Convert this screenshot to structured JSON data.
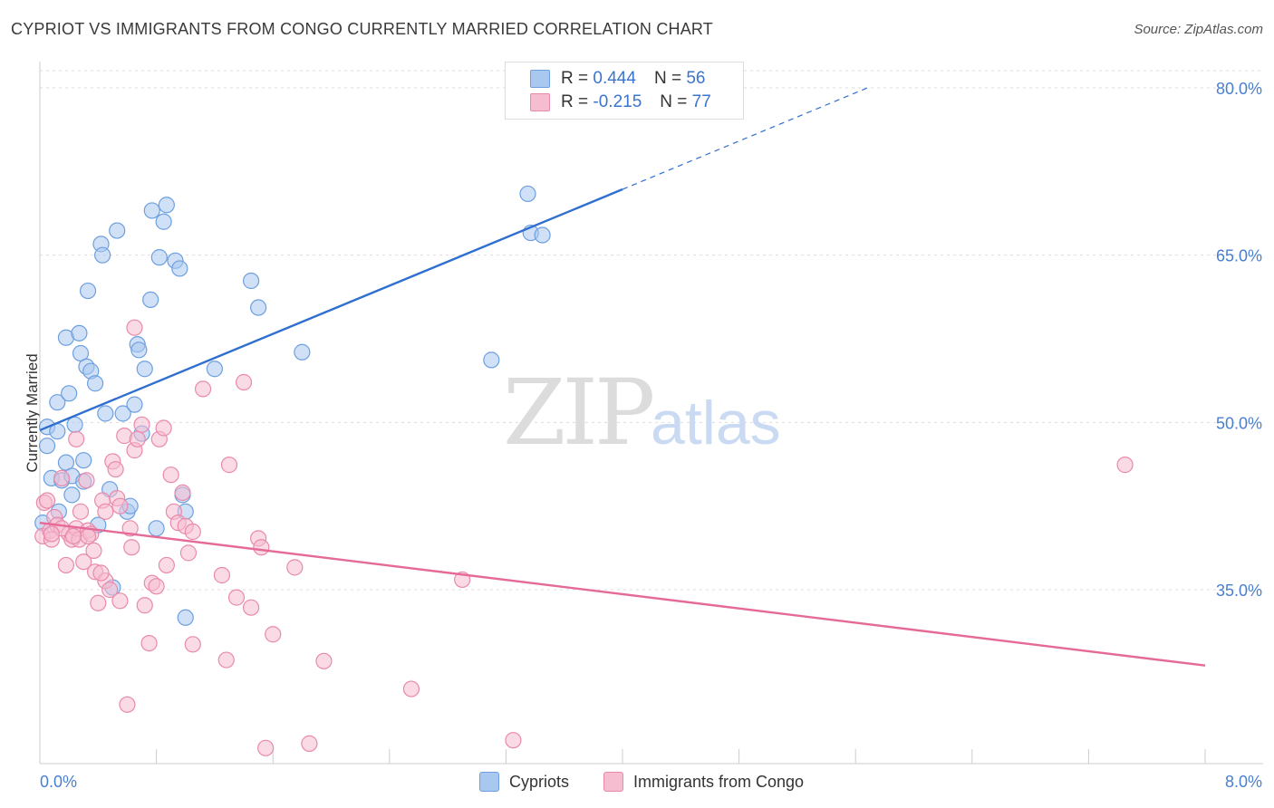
{
  "title": "CYPRIOT VS IMMIGRANTS FROM CONGO CURRENTLY MARRIED CORRELATION CHART",
  "source": "Source: ZipAtlas.com",
  "watermark": {
    "zip": "ZIP",
    "atlas": "atlas"
  },
  "colors": {
    "blue_fill": "#a9c8f0",
    "blue_edge": "#6d9fe0",
    "blue_line": "#2f6fd0",
    "pink_fill": "#f6bcd0",
    "pink_edge": "#e98aab",
    "pink_line": "#e56a97",
    "axis_text": "#4a7fd0",
    "grid": "#dddddd"
  },
  "legend": {
    "rows": [
      {
        "r_label": "R = ",
        "r_value": "0.444",
        "n_label": "N = ",
        "n_value": "56",
        "color": "#a9c8f0"
      },
      {
        "r_label": "R = ",
        "r_value": "-0.215",
        "n_label": "N = ",
        "n_value": "77",
        "color": "#f6bcd0"
      }
    ]
  },
  "bottom_legend": [
    {
      "label": "Cypriots",
      "color": "#a9c8f0"
    },
    {
      "label": "Immigrants from Congo",
      "color": "#f6bcd0"
    }
  ],
  "chart_data": {
    "type": "scatter",
    "title": "CYPRIOT VS IMMIGRANTS FROM CONGO CURRENTLY MARRIED CORRELATION CHART",
    "xlabel": "",
    "ylabel": "Currently Married",
    "xlim": [
      0,
      8.4
    ],
    "ylim": [
      21.0,
      82.0
    ],
    "x_tick_labels": [
      "0.0%",
      "8.0%"
    ],
    "y_ticks": [
      35.0,
      50.0,
      65.0,
      80.0
    ],
    "y_tick_labels": [
      "35.0%",
      "50.0%",
      "65.0%",
      "80.0%"
    ],
    "grid": true,
    "series": [
      {
        "name": "Cypriots",
        "r": 0.444,
        "n": 56,
        "trend": {
          "x0": 0.0,
          "y0": 49.3,
          "x1": 4.0,
          "y1": 70.9,
          "dash_x1": 5.7,
          "dash_y1": 80.1
        },
        "points": [
          [
            0.05,
            49.6
          ],
          [
            0.05,
            47.9
          ],
          [
            0.08,
            45.0
          ],
          [
            0.12,
            49.2
          ],
          [
            0.12,
            51.8
          ],
          [
            0.15,
            44.8
          ],
          [
            0.18,
            46.4
          ],
          [
            0.18,
            57.6
          ],
          [
            0.2,
            52.6
          ],
          [
            0.22,
            43.5
          ],
          [
            0.22,
            45.2
          ],
          [
            0.24,
            49.8
          ],
          [
            0.27,
            58.0
          ],
          [
            0.28,
            56.2
          ],
          [
            0.3,
            46.6
          ],
          [
            0.32,
            55.0
          ],
          [
            0.33,
            61.8
          ],
          [
            0.35,
            54.6
          ],
          [
            0.38,
            53.5
          ],
          [
            0.42,
            66.0
          ],
          [
            0.43,
            65.0
          ],
          [
            0.45,
            50.8
          ],
          [
            0.48,
            44.0
          ],
          [
            0.5,
            35.2
          ],
          [
            0.53,
            67.2
          ],
          [
            0.57,
            50.8
          ],
          [
            0.6,
            42.0
          ],
          [
            0.62,
            42.5
          ],
          [
            0.65,
            51.6
          ],
          [
            0.67,
            57.0
          ],
          [
            0.68,
            56.5
          ],
          [
            0.7,
            49.0
          ],
          [
            0.72,
            54.8
          ],
          [
            0.76,
            61.0
          ],
          [
            0.77,
            69.0
          ],
          [
            0.8,
            40.5
          ],
          [
            0.82,
            64.8
          ],
          [
            0.85,
            68.0
          ],
          [
            0.87,
            69.5
          ],
          [
            0.93,
            64.5
          ],
          [
            0.96,
            63.8
          ],
          [
            0.98,
            43.5
          ],
          [
            1.0,
            42.0
          ],
          [
            1.0,
            32.5
          ],
          [
            1.2,
            54.8
          ],
          [
            1.45,
            62.7
          ],
          [
            1.5,
            60.3
          ],
          [
            1.8,
            56.3
          ],
          [
            3.1,
            55.6
          ],
          [
            3.35,
            70.5
          ],
          [
            3.37,
            67.0
          ],
          [
            3.45,
            66.8
          ],
          [
            0.02,
            41.0
          ],
          [
            0.3,
            44.7
          ],
          [
            0.13,
            42.0
          ],
          [
            0.4,
            40.8
          ]
        ]
      },
      {
        "name": "Immigrants from Congo",
        "r": -0.215,
        "n": 77,
        "trend": {
          "x0": 0.0,
          "y0": 41.0,
          "x1": 8.0,
          "y1": 28.2
        },
        "points": [
          [
            0.02,
            39.8
          ],
          [
            0.03,
            42.8
          ],
          [
            0.05,
            43.0
          ],
          [
            0.07,
            40.3
          ],
          [
            0.08,
            39.5
          ],
          [
            0.1,
            41.5
          ],
          [
            0.12,
            40.8
          ],
          [
            0.15,
            45.0
          ],
          [
            0.18,
            37.2
          ],
          [
            0.2,
            40.0
          ],
          [
            0.22,
            39.5
          ],
          [
            0.25,
            48.5
          ],
          [
            0.25,
            40.5
          ],
          [
            0.27,
            39.5
          ],
          [
            0.28,
            42.0
          ],
          [
            0.3,
            37.5
          ],
          [
            0.32,
            44.8
          ],
          [
            0.33,
            40.3
          ],
          [
            0.35,
            40.0
          ],
          [
            0.37,
            38.5
          ],
          [
            0.38,
            36.6
          ],
          [
            0.4,
            33.8
          ],
          [
            0.43,
            43.0
          ],
          [
            0.45,
            42.0
          ],
          [
            0.45,
            35.8
          ],
          [
            0.48,
            35.0
          ],
          [
            0.5,
            46.5
          ],
          [
            0.52,
            45.8
          ],
          [
            0.53,
            43.2
          ],
          [
            0.55,
            34.0
          ],
          [
            0.58,
            48.8
          ],
          [
            0.6,
            24.7
          ],
          [
            0.62,
            40.5
          ],
          [
            0.63,
            38.8
          ],
          [
            0.65,
            47.5
          ],
          [
            0.67,
            48.5
          ],
          [
            0.7,
            49.8
          ],
          [
            0.72,
            33.6
          ],
          [
            0.75,
            30.2
          ],
          [
            0.77,
            35.6
          ],
          [
            0.8,
            35.3
          ],
          [
            0.82,
            48.5
          ],
          [
            0.85,
            49.5
          ],
          [
            0.87,
            37.2
          ],
          [
            0.9,
            45.3
          ],
          [
            0.92,
            42.0
          ],
          [
            0.95,
            41.0
          ],
          [
            0.98,
            43.7
          ],
          [
            1.0,
            40.7
          ],
          [
            1.02,
            38.3
          ],
          [
            1.05,
            40.2
          ],
          [
            1.05,
            30.1
          ],
          [
            1.12,
            53.0
          ],
          [
            1.25,
            36.3
          ],
          [
            1.28,
            28.7
          ],
          [
            1.3,
            46.2
          ],
          [
            1.35,
            34.3
          ],
          [
            1.4,
            53.6
          ],
          [
            1.45,
            33.4
          ],
          [
            1.5,
            39.6
          ],
          [
            1.52,
            38.8
          ],
          [
            1.55,
            20.8
          ],
          [
            1.6,
            31.0
          ],
          [
            1.75,
            37.0
          ],
          [
            1.85,
            21.2
          ],
          [
            1.95,
            28.6
          ],
          [
            2.55,
            26.1
          ],
          [
            2.9,
            35.9
          ],
          [
            3.25,
            21.5
          ],
          [
            7.45,
            46.2
          ],
          [
            0.65,
            58.5
          ],
          [
            0.42,
            36.5
          ],
          [
            0.15,
            40.5
          ],
          [
            0.55,
            42.5
          ],
          [
            0.33,
            39.8
          ],
          [
            0.08,
            40.0
          ],
          [
            0.23,
            39.8
          ]
        ]
      }
    ]
  }
}
